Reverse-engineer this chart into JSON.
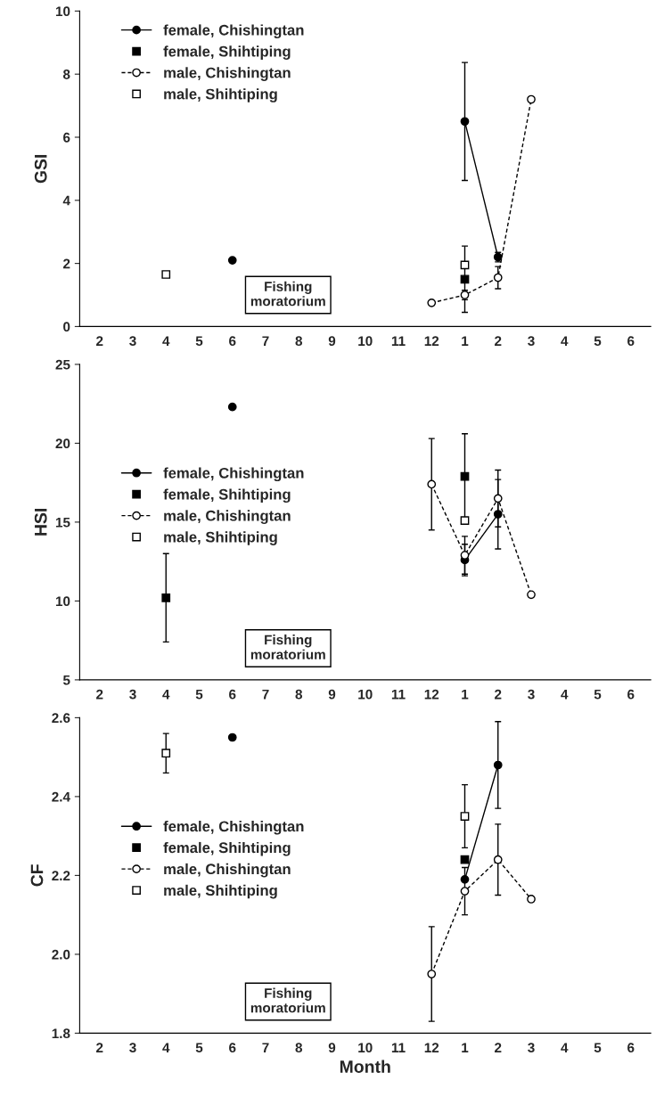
{
  "chart_data": [
    {
      "type": "line",
      "ylabel": "GSI",
      "categories": [
        "2",
        "3",
        "4",
        "5",
        "6",
        "7",
        "8",
        "9",
        "10",
        "11",
        "12",
        "1",
        "2",
        "3",
        "4",
        "5",
        "6"
      ],
      "ylim": [
        0,
        10
      ],
      "yticks": [
        0,
        2,
        4,
        6,
        8,
        10
      ],
      "legend": "top left",
      "grid": false,
      "annotations": [
        "Fishing\nmoratorium"
      ],
      "series": [
        {
          "name": "female, Chishingtan",
          "type": "line",
          "color": "#000000",
          "marker": "circle",
          "line_style": "solid",
          "values": [
            null,
            null,
            null,
            null,
            2.1,
            null,
            null,
            null,
            null,
            null,
            null,
            6.5,
            2.2,
            null,
            null,
            null,
            null
          ],
          "errors": [
            null,
            null,
            null,
            null,
            null,
            null,
            null,
            null,
            null,
            null,
            null,
            1.87,
            0.15,
            null,
            null,
            null,
            null
          ]
        },
        {
          "name": "female, Shihtiping",
          "type": "scatter",
          "color": "#000000",
          "marker": "square",
          "values": [
            null,
            null,
            null,
            null,
            null,
            null,
            null,
            null,
            null,
            null,
            null,
            1.5,
            null,
            null,
            null,
            null,
            null
          ],
          "errors": [
            null,
            null,
            null,
            null,
            null,
            null,
            null,
            null,
            null,
            null,
            null,
            1.05,
            null,
            null,
            null,
            null,
            null
          ]
        },
        {
          "name": "male, Chishingtan",
          "type": "line",
          "color": "#ffffff",
          "marker": "circle",
          "line_style": "dashed",
          "values": [
            null,
            null,
            null,
            null,
            null,
            null,
            null,
            null,
            null,
            null,
            0.75,
            1.0,
            1.55,
            7.2,
            null,
            null,
            null
          ],
          "errors": [
            null,
            null,
            null,
            null,
            null,
            null,
            null,
            null,
            null,
            null,
            null,
            0.15,
            0.35,
            null,
            null,
            null,
            null
          ]
        },
        {
          "name": "male, Shihtiping",
          "type": "scatter",
          "color": "#ffffff",
          "marker": "square",
          "values": [
            null,
            null,
            1.65,
            null,
            null,
            null,
            null,
            null,
            null,
            null,
            null,
            1.95,
            null,
            null,
            null,
            null,
            null
          ]
        }
      ]
    },
    {
      "type": "line",
      "ylabel": "HSI",
      "categories": [
        "2",
        "3",
        "4",
        "5",
        "6",
        "7",
        "8",
        "9",
        "10",
        "11",
        "12",
        "1",
        "2",
        "3",
        "4",
        "5",
        "6"
      ],
      "ylim": [
        5,
        25
      ],
      "yticks": [
        5,
        10,
        15,
        20,
        25
      ],
      "legend": "left",
      "grid": false,
      "annotations": [
        "Fishing\nmoratorium"
      ],
      "series": [
        {
          "name": "female, Chishingtan",
          "type": "line",
          "color": "#000000",
          "marker": "circle",
          "line_style": "solid",
          "values": [
            null,
            null,
            null,
            null,
            22.3,
            null,
            null,
            null,
            null,
            null,
            null,
            12.6,
            15.5,
            null,
            null,
            null,
            null
          ],
          "errors": [
            null,
            null,
            null,
            null,
            null,
            null,
            null,
            null,
            null,
            null,
            null,
            1.0,
            2.2,
            null,
            null,
            null,
            null
          ]
        },
        {
          "name": "female, Shihtiping",
          "type": "scatter",
          "color": "#000000",
          "marker": "square",
          "values": [
            null,
            null,
            10.2,
            null,
            null,
            null,
            null,
            null,
            null,
            null,
            null,
            17.9,
            null,
            null,
            null,
            null,
            null
          ],
          "errors": [
            null,
            null,
            2.8,
            null,
            null,
            null,
            null,
            null,
            null,
            null,
            null,
            2.7,
            null,
            null,
            null,
            null,
            null
          ]
        },
        {
          "name": "male, Chishingtan",
          "type": "line",
          "color": "#ffffff",
          "marker": "circle",
          "line_style": "dashed",
          "values": [
            null,
            null,
            null,
            null,
            null,
            null,
            null,
            null,
            null,
            null,
            17.4,
            12.9,
            16.5,
            10.4,
            null,
            null,
            null
          ],
          "errors": [
            null,
            null,
            null,
            null,
            null,
            null,
            null,
            null,
            null,
            null,
            2.9,
            1.2,
            1.8,
            null,
            null,
            null,
            null
          ]
        },
        {
          "name": "male, Shihtiping",
          "type": "scatter",
          "color": "#ffffff",
          "marker": "square",
          "values": [
            null,
            null,
            null,
            null,
            null,
            null,
            null,
            null,
            null,
            null,
            null,
            15.1,
            null,
            null,
            null,
            null,
            null
          ]
        }
      ]
    },
    {
      "type": "line",
      "ylabel": "CF",
      "xlabel": "Month",
      "categories": [
        "2",
        "3",
        "4",
        "5",
        "6",
        "7",
        "8",
        "9",
        "10",
        "11",
        "12",
        "1",
        "2",
        "3",
        "4",
        "5",
        "6"
      ],
      "ylim": [
        1.8,
        2.6
      ],
      "yticks": [
        {
          "value": 1.8,
          "label": "1.8"
        },
        {
          "value": 2.0,
          "label": "2.0"
        },
        {
          "value": 2.2,
          "label": "2.2"
        },
        {
          "value": 2.4,
          "label": "2.4"
        },
        {
          "value": 2.6,
          "label": "2.6"
        }
      ],
      "legend": "left",
      "grid": false,
      "annotations": [
        "Fishing\nmoratorium"
      ],
      "series": [
        {
          "name": "female, Chishingtan",
          "type": "line",
          "color": "#000000",
          "marker": "circle",
          "line_style": "solid",
          "values": [
            null,
            null,
            null,
            null,
            2.55,
            null,
            null,
            null,
            null,
            null,
            null,
            2.19,
            2.48,
            null,
            null,
            null,
            null
          ],
          "errors": [
            null,
            null,
            null,
            null,
            null,
            null,
            null,
            null,
            null,
            null,
            null,
            null,
            0.11,
            null,
            null,
            null,
            null
          ]
        },
        {
          "name": "female, Shihtiping",
          "type": "scatter",
          "color": "#000000",
          "marker": "square",
          "values": [
            null,
            null,
            null,
            null,
            null,
            null,
            null,
            null,
            null,
            null,
            null,
            2.24,
            null,
            null,
            null,
            null,
            null
          ]
        },
        {
          "name": "male, Chishingtan",
          "type": "line",
          "color": "#ffffff",
          "marker": "circle",
          "line_style": "dashed",
          "values": [
            null,
            null,
            null,
            null,
            null,
            null,
            null,
            null,
            null,
            null,
            1.95,
            2.16,
            2.24,
            2.14,
            null,
            null,
            null
          ],
          "errors": [
            null,
            null,
            null,
            null,
            null,
            null,
            null,
            null,
            null,
            null,
            0.12,
            0.06,
            0.09,
            null,
            null,
            null,
            null
          ]
        },
        {
          "name": "male, Shihtiping",
          "type": "scatter",
          "color": "#ffffff",
          "marker": "square",
          "values": [
            null,
            null,
            2.51,
            null,
            null,
            null,
            null,
            null,
            null,
            null,
            null,
            2.35,
            null,
            null,
            null,
            null,
            null
          ],
          "errors": [
            null,
            null,
            0.05,
            null,
            null,
            null,
            null,
            null,
            null,
            null,
            null,
            0.08,
            null,
            null,
            null,
            null,
            null
          ]
        }
      ]
    }
  ]
}
